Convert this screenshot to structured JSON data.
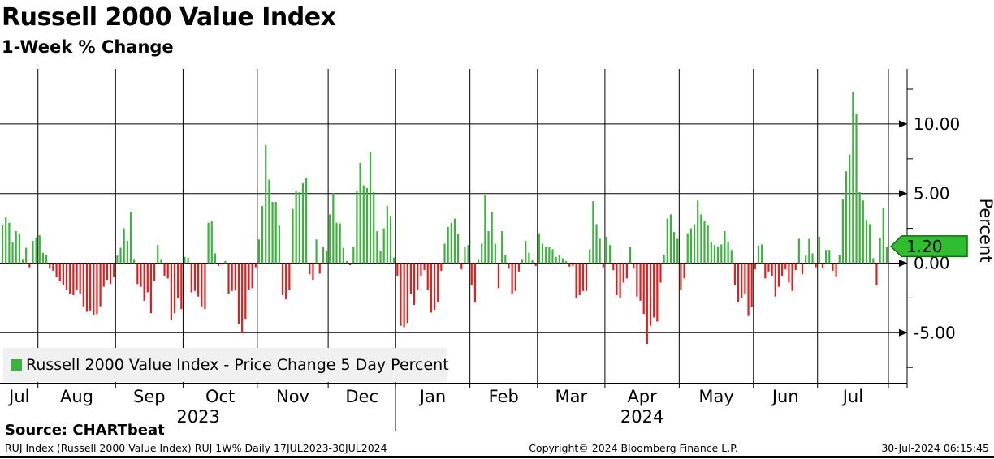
{
  "header": {
    "title": "Russell 2000 Value Index",
    "subtitle": "1-Week % Change"
  },
  "legend": {
    "label": "Russell 2000 Value Index - Price Change 5 Day Percent"
  },
  "footer": {
    "source": "Source: CHARTbeat",
    "meta_left": "RUJ Index (Russell 2000 Value Index) RUJ 1W%  Daily 17JUL2023-30JUL2024",
    "meta_center": "Copyright© 2024 Bloomberg Finance L.P.",
    "meta_right": "30-Jul-2024 06:15:45"
  },
  "chart_data": {
    "type": "bar",
    "title": "Russell 2000 Value Index",
    "subtitle": "1-Week % Change",
    "ylabel": "Percent",
    "ylim": [
      -8.7,
      14
    ],
    "grid": true,
    "y_major": [
      {
        "value": 10,
        "label": "10.00"
      },
      {
        "value": 5,
        "label": "5.00"
      },
      {
        "value": 0,
        "label": "0.00"
      },
      {
        "value": -5,
        "label": "-5.00"
      }
    ],
    "y_minor": [
      12.5,
      7.5,
      2.5,
      -2.5,
      -7.5
    ],
    "last_value": {
      "label": "1.20",
      "value": 1.2
    },
    "colors": {
      "positive": "#3ab43a",
      "negative": "#e01f1f",
      "tag_fill": "#2fbe2f",
      "tag_border": "#0e6e0e"
    },
    "legend": "Russell 2000 Value Index - Price Change 5 Day Percent",
    "years": [
      {
        "label": "2023",
        "month_count": 6
      },
      {
        "label": "2024",
        "month_count": 7
      }
    ],
    "months": [
      {
        "label": "Jul",
        "values": [
          2.75,
          3.3,
          2.9,
          1.5,
          2.3,
          2.15,
          0.3,
          1.1,
          -0.3,
          1.6,
          1.85
        ]
      },
      {
        "label": "Aug",
        "values": [
          2.0,
          0.75,
          0.6,
          -0.4,
          -0.55,
          -1.0,
          -1.3,
          -1.55,
          -1.9,
          -2.2,
          -2.3,
          -1.9,
          -2.2,
          -3.1,
          -3.5,
          -3.4,
          -3.7,
          -3.65,
          -3.1,
          -1.7,
          -1.2,
          -1.5,
          -1.0
        ]
      },
      {
        "label": "Sep",
        "values": [
          0.55,
          1.1,
          2.5,
          1.6,
          3.7,
          0.3,
          -1.5,
          -1.7,
          -2.7,
          -2.1,
          -3.6,
          -1.3,
          1.3,
          0.3,
          -0.9,
          -1.1,
          -4.1,
          -3.6,
          -2.5,
          -3.3
        ]
      },
      {
        "label": "Oct",
        "values": [
          0.45,
          0.4,
          -2.1,
          -2.0,
          -2.4,
          -3.1,
          -3.3,
          2.9,
          3.0,
          0.7,
          -0.2,
          -0.1,
          0.15,
          -2.2,
          -2.0,
          -1.9,
          -4.35,
          -5.05,
          -4.0,
          -1.9,
          -1.8,
          -0.3
        ]
      },
      {
        "label": "Nov",
        "values": [
          1.7,
          4.1,
          8.5,
          6.0,
          4.4,
          4.4,
          2.7,
          -2.3,
          -2.6,
          -1.9,
          3.9,
          5.2,
          5.1,
          5.75,
          6.1,
          -0.8,
          -1.2,
          1.7,
          -0.75,
          1.15,
          0.85
        ]
      },
      {
        "label": "Dec",
        "values": [
          3.5,
          5.05,
          2.9,
          2.85,
          1.1,
          0.15,
          -0.15,
          1.2,
          5.2,
          7.2,
          5.6,
          5.4,
          8.0,
          5.1,
          2.3,
          0.9,
          2.5,
          4.1,
          3.4,
          0.4
        ]
      },
      {
        "label": "Jan",
        "values": [
          -0.9,
          -4.5,
          -4.6,
          -4.3,
          -2.2,
          -3.0,
          -1.9,
          -0.9,
          -0.5,
          -1.9,
          -3.55,
          -3.35,
          -2.8,
          -0.55,
          1.4,
          2.6,
          2.9,
          3.2,
          2.1,
          -0.45,
          1.2,
          1.3
        ]
      },
      {
        "label": "Feb",
        "values": [
          -1.6,
          -2.8,
          0.3,
          1.4,
          4.9,
          2.3,
          3.7,
          1.4,
          -1.8,
          2.3,
          0.55,
          -0.4,
          -2.2,
          -2.0,
          -0.6,
          0.3,
          1.6,
          0.75,
          0.2,
          -0.2
        ]
      },
      {
        "label": "Mar",
        "values": [
          2.15,
          1.4,
          1.2,
          1.2,
          1.0,
          0.45,
          0.55,
          0.35,
          0.15,
          -0.25,
          -0.2,
          -2.5,
          -2.3,
          -2.0,
          -2.0,
          1.0,
          4.45,
          2.8,
          1.75,
          -0.3
        ]
      },
      {
        "label": "Apr",
        "values": [
          1.9,
          1.3,
          -0.5,
          -2.3,
          -2.5,
          -1.4,
          -1.1,
          1.2,
          -0.4,
          -2.4,
          -2.7,
          -3.65,
          -5.8,
          -4.5,
          -3.9,
          -4.2,
          -1.4,
          0.6,
          3.2,
          3.5,
          2.25,
          1.75
        ]
      },
      {
        "label": "May",
        "values": [
          -1.95,
          -1.1,
          2.15,
          2.5,
          2.8,
          4.5,
          3.5,
          3.05,
          2.7,
          1.55,
          1.3,
          1.2,
          1.35,
          2.3,
          1.55,
          0.95,
          -1.6,
          -2.8,
          -2.5,
          -2.2,
          -3.8,
          -3.15
        ]
      },
      {
        "label": "Jun",
        "values": [
          -0.45,
          1.25,
          1.35,
          -1.1,
          -0.6,
          -0.9,
          -2.4,
          -1.7,
          -0.9,
          -0.45,
          -1.4,
          -2.0,
          -0.5,
          1.75,
          -0.8,
          0.55,
          1.75,
          0.7,
          -0.3
        ]
      },
      {
        "label": "Jul",
        "values": [
          1.9,
          -0.35,
          0.95,
          0.95,
          -0.55,
          -0.95,
          0.55,
          4.6,
          6.6,
          7.8,
          12.3,
          10.7,
          5.1,
          4.5,
          3.1,
          2.8,
          0.35,
          -1.6,
          1.8,
          4.0,
          1.2
        ]
      }
    ]
  }
}
